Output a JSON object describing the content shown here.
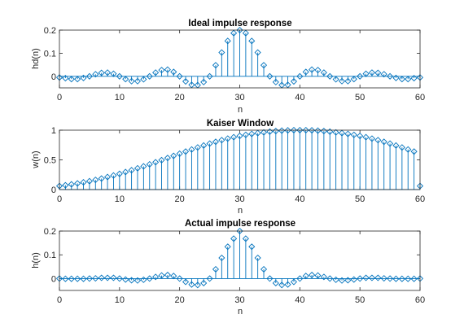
{
  "chart_data": [
    {
      "type": "stem",
      "title": "Ideal impulse response",
      "xlabel": "n",
      "ylabel": "hd(n)",
      "xlim": [
        0,
        60
      ],
      "ylim": [
        -0.05,
        0.2
      ],
      "xticks": [
        "0",
        "10",
        "20",
        "30",
        "40",
        "50",
        "60"
      ],
      "yticks": [
        "0",
        "0.1",
        "0.2"
      ],
      "ytick_values": [
        0,
        0.1,
        0.2
      ],
      "color": "#0072BD",
      "x_start": 0,
      "values": [
        -0.005,
        -0.008,
        -0.012,
        -0.012,
        -0.007,
        0.0,
        0.009,
        0.015,
        0.016,
        0.011,
        0.0,
        -0.012,
        -0.021,
        -0.021,
        -0.013,
        0.0,
        0.016,
        0.027,
        0.029,
        0.019,
        0.0,
        -0.022,
        -0.037,
        -0.038,
        -0.025,
        0.0,
        0.048,
        0.103,
        0.153,
        0.187,
        0.2,
        0.187,
        0.153,
        0.103,
        0.048,
        0.0,
        -0.025,
        -0.038,
        -0.037,
        -0.022,
        0.0,
        0.019,
        0.029,
        0.027,
        0.016,
        0.0,
        -0.013,
        -0.021,
        -0.021,
        -0.012,
        0.0,
        0.011,
        0.016,
        0.015,
        0.009,
        0.0,
        -0.007,
        -0.012,
        -0.012,
        -0.008,
        -0.005
      ]
    },
    {
      "type": "stem",
      "title": "Kaiser Window",
      "xlabel": "n",
      "ylabel": "w(n)",
      "xlim": [
        0,
        60
      ],
      "ylim": [
        0,
        1
      ],
      "xticks": [
        "0",
        "10",
        "20",
        "30",
        "40",
        "50",
        "60"
      ],
      "yticks": [
        "0",
        "0.5",
        "1"
      ],
      "ytick_values": [
        0,
        0.5,
        1
      ],
      "color": "#0072BD",
      "x_start": 0,
      "values": [
        0.06,
        0.073,
        0.088,
        0.104,
        0.122,
        0.141,
        0.163,
        0.186,
        0.211,
        0.237,
        0.265,
        0.295,
        0.326,
        0.358,
        0.391,
        0.425,
        0.46,
        0.496,
        0.532,
        0.568,
        0.604,
        0.64,
        0.675,
        0.709,
        0.742,
        0.774,
        0.804,
        0.832,
        0.858,
        0.882,
        0.903,
        0.921,
        0.937,
        0.951,
        0.962,
        0.975,
        0.985,
        0.992,
        0.997,
        1.0,
        1.0,
        1.0,
        0.997,
        0.992,
        0.985,
        0.975,
        0.962,
        0.951,
        0.937,
        0.921,
        0.903,
        0.882,
        0.858,
        0.832,
        0.804,
        0.774,
        0.742,
        0.709,
        0.675,
        0.64,
        0.06
      ]
    },
    {
      "type": "stem",
      "title": "Actual impulse response",
      "xlabel": "n",
      "ylabel": "h(n)",
      "xlim": [
        0,
        60
      ],
      "ylim": [
        -0.05,
        0.2
      ],
      "xticks": [
        "0",
        "10",
        "20",
        "30",
        "40",
        "50",
        "60"
      ],
      "yticks": [
        "0",
        "0.1",
        "0.2"
      ],
      "ytick_values": [
        0,
        0.1,
        0.2
      ],
      "color": "#0072BD",
      "x_start": 0,
      "values": [
        0.0,
        -0.001,
        -0.001,
        -0.001,
        -0.001,
        0.0,
        0.001,
        0.003,
        0.003,
        0.003,
        0.0,
        -0.004,
        -0.007,
        -0.008,
        -0.005,
        0.0,
        0.007,
        0.013,
        0.015,
        0.011,
        0.0,
        -0.014,
        -0.025,
        -0.027,
        -0.019,
        0.0,
        0.039,
        0.087,
        0.134,
        0.168,
        0.2,
        0.168,
        0.134,
        0.087,
        0.039,
        0.0,
        -0.019,
        -0.027,
        -0.025,
        -0.014,
        0.0,
        0.011,
        0.015,
        0.013,
        0.007,
        0.0,
        -0.005,
        -0.008,
        -0.007,
        -0.004,
        0.0,
        0.003,
        0.003,
        0.003,
        0.001,
        0.0,
        -0.001,
        -0.001,
        -0.001,
        -0.001,
        0.0
      ]
    }
  ]
}
